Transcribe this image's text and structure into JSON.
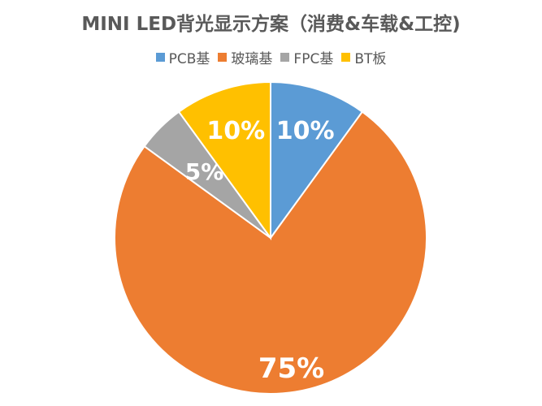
{
  "chart_data": {
    "type": "pie",
    "title": "MINI LED背光显示方案（消费&车载&工控)",
    "categories": [
      "PCB基",
      "玻璃基",
      "FPC基",
      "BT板"
    ],
    "values": [
      10,
      75,
      5,
      10
    ],
    "labels": [
      "10%",
      "75%",
      "5%",
      "10%"
    ],
    "colors": [
      "#5B9BD5",
      "#ED7D31",
      "#A5A5A5",
      "#FFC000"
    ],
    "legend_position": "top",
    "start_angle_deg": 0,
    "direction": "clockwise"
  }
}
